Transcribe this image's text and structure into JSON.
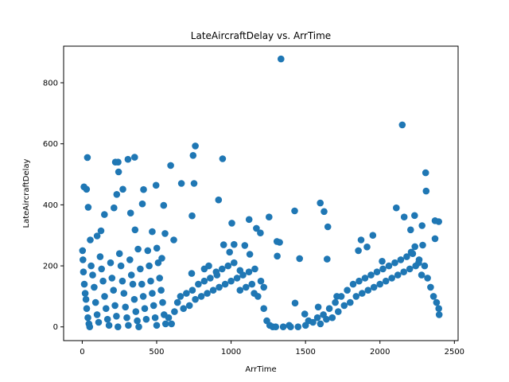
{
  "chart_data": {
    "type": "scatter",
    "title": "LateAircraftDelay vs. ArrTime",
    "xlabel": "ArrTime",
    "ylabel": "LateAircraftDelay",
    "xlim": [
      -125,
      2525
    ],
    "ylim": [
      -45,
      920
    ],
    "x_ticks": [
      0,
      500,
      1000,
      1500,
      2000,
      2500
    ],
    "y_ticks": [
      0,
      200,
      400,
      600,
      800
    ],
    "grid": false,
    "marker_color": "#1f77b4",
    "series": [
      {
        "points": [
          [
            1335,
            878
          ],
          [
            2150,
            662
          ],
          [
            760,
            593
          ],
          [
            745,
            562
          ],
          [
            35,
            555
          ],
          [
            352,
            556
          ],
          [
            943,
            551
          ],
          [
            307,
            549
          ],
          [
            223,
            540
          ],
          [
            241,
            540
          ],
          [
            594,
            529
          ],
          [
            244,
            508
          ],
          [
            2307,
            505
          ],
          [
            666,
            470
          ],
          [
            751,
            470
          ],
          [
            496,
            464
          ],
          [
            12,
            459
          ],
          [
            29,
            451
          ],
          [
            273,
            451
          ],
          [
            412,
            450
          ],
          [
            2310,
            445
          ],
          [
            232,
            434
          ],
          [
            916,
            416
          ],
          [
            1599,
            406
          ],
          [
            404,
            403
          ],
          [
            547,
            398
          ],
          [
            40,
            392
          ],
          [
            213,
            390
          ],
          [
            2110,
            390
          ],
          [
            1427,
            380
          ],
          [
            1625,
            378
          ],
          [
            325,
            373
          ],
          [
            738,
            364
          ],
          [
            1255,
            360
          ],
          [
            2163,
            360
          ],
          [
            2233,
            365
          ],
          [
            149,
            368
          ],
          [
            1121,
            352
          ],
          [
            2370,
            348
          ],
          [
            2395,
            345
          ],
          [
            1005,
            340
          ],
          [
            2283,
            332
          ],
          [
            1650,
            328
          ],
          [
            1170,
            323
          ],
          [
            2206,
            318
          ],
          [
            355,
            318
          ],
          [
            126,
            315
          ],
          [
            470,
            312
          ],
          [
            1197,
            308
          ],
          [
            556,
            306
          ],
          [
            1952,
            300
          ],
          [
            100,
            298
          ],
          [
            2370,
            289
          ],
          [
            1873,
            285
          ],
          [
            615,
            285
          ],
          [
            54,
            285
          ],
          [
            1308,
            280
          ],
          [
            1326,
            277
          ],
          [
            1020,
            270
          ],
          [
            950,
            269
          ],
          [
            2287,
            268
          ],
          [
            1092,
            267
          ],
          [
            2235,
            263
          ],
          [
            1913,
            262
          ],
          [
            501,
            258
          ],
          [
            375,
            255
          ],
          [
            1855,
            250
          ],
          [
            2210,
            245
          ],
          [
            990,
            245
          ],
          [
            1126,
            238
          ],
          [
            1310,
            232
          ],
          [
            1460,
            224
          ],
          [
            1645,
            222
          ],
          [
            2263,
            220
          ],
          [
            2015,
            215
          ],
          [
            535,
            225
          ],
          [
            735,
            175
          ],
          [
            1220,
            130
          ],
          [
            1155,
            110
          ],
          [
            1495,
            42
          ],
          [
            1585,
            65
          ],
          [
            1710,
            100
          ],
          [
            850,
            200
          ],
          [
            820,
            190
          ],
          [
            1060,
            185
          ],
          [
            905,
            170
          ],
          [
            1390,
            5
          ],
          [
            1430,
            78
          ],
          [
            2,
            250
          ],
          [
            5,
            220
          ],
          [
            8,
            180
          ],
          [
            14,
            140
          ],
          [
            20,
            110
          ],
          [
            25,
            90
          ],
          [
            30,
            60
          ],
          [
            38,
            30
          ],
          [
            45,
            10
          ],
          [
            50,
            0
          ],
          [
            60,
            200
          ],
          [
            70,
            170
          ],
          [
            80,
            130
          ],
          [
            90,
            80
          ],
          [
            100,
            40
          ],
          [
            110,
            15
          ],
          [
            120,
            230
          ],
          [
            130,
            190
          ],
          [
            140,
            150
          ],
          [
            150,
            100
          ],
          [
            160,
            60
          ],
          [
            170,
            25
          ],
          [
            180,
            5
          ],
          [
            190,
            210
          ],
          [
            200,
            160
          ],
          [
            210,
            120
          ],
          [
            220,
            70
          ],
          [
            230,
            35
          ],
          [
            240,
            0
          ],
          [
            250,
            240
          ],
          [
            260,
            200
          ],
          [
            270,
            150
          ],
          [
            280,
            110
          ],
          [
            290,
            65
          ],
          [
            300,
            30
          ],
          [
            310,
            5
          ],
          [
            320,
            220
          ],
          [
            330,
            170
          ],
          [
            340,
            140
          ],
          [
            350,
            90
          ],
          [
            360,
            50
          ],
          [
            370,
            20
          ],
          [
            380,
            0
          ],
          [
            390,
            190
          ],
          [
            400,
            140
          ],
          [
            410,
            100
          ],
          [
            420,
            60
          ],
          [
            430,
            25
          ],
          [
            440,
            250
          ],
          [
            450,
            200
          ],
          [
            460,
            150
          ],
          [
            470,
            110
          ],
          [
            480,
            70
          ],
          [
            490,
            30
          ],
          [
            500,
            5
          ],
          [
            510,
            210
          ],
          [
            520,
            160
          ],
          [
            530,
            120
          ],
          [
            540,
            80
          ],
          [
            550,
            40
          ],
          [
            560,
            10
          ],
          [
            580,
            30
          ],
          [
            600,
            10
          ],
          [
            620,
            50
          ],
          [
            640,
            80
          ],
          [
            660,
            100
          ],
          [
            680,
            60
          ],
          [
            700,
            110
          ],
          [
            720,
            70
          ],
          [
            740,
            120
          ],
          [
            760,
            90
          ],
          [
            780,
            140
          ],
          [
            800,
            100
          ],
          [
            820,
            150
          ],
          [
            840,
            110
          ],
          [
            860,
            160
          ],
          [
            880,
            120
          ],
          [
            900,
            180
          ],
          [
            920,
            130
          ],
          [
            940,
            190
          ],
          [
            960,
            140
          ],
          [
            980,
            200
          ],
          [
            1000,
            150
          ],
          [
            1020,
            210
          ],
          [
            1040,
            160
          ],
          [
            1060,
            120
          ],
          [
            1080,
            170
          ],
          [
            1100,
            130
          ],
          [
            1120,
            180
          ],
          [
            1140,
            140
          ],
          [
            1160,
            190
          ],
          [
            1180,
            100
          ],
          [
            1200,
            150
          ],
          [
            1220,
            60
          ],
          [
            1240,
            20
          ],
          [
            1260,
            5
          ],
          [
            1280,
            0
          ],
          [
            1300,
            0
          ],
          [
            1350,
            0
          ],
          [
            1400,
            0
          ],
          [
            1450,
            0
          ],
          [
            1500,
            5
          ],
          [
            1520,
            20
          ],
          [
            1550,
            15
          ],
          [
            1580,
            30
          ],
          [
            1600,
            10
          ],
          [
            1620,
            40
          ],
          [
            1640,
            25
          ],
          [
            1660,
            60
          ],
          [
            1680,
            30
          ],
          [
            1700,
            80
          ],
          [
            1720,
            50
          ],
          [
            1740,
            100
          ],
          [
            1760,
            70
          ],
          [
            1780,
            120
          ],
          [
            1800,
            80
          ],
          [
            1820,
            140
          ],
          [
            1840,
            100
          ],
          [
            1860,
            150
          ],
          [
            1880,
            110
          ],
          [
            1900,
            160
          ],
          [
            1920,
            120
          ],
          [
            1940,
            170
          ],
          [
            1960,
            130
          ],
          [
            1980,
            180
          ],
          [
            2000,
            140
          ],
          [
            2020,
            190
          ],
          [
            2040,
            150
          ],
          [
            2060,
            200
          ],
          [
            2080,
            160
          ],
          [
            2100,
            210
          ],
          [
            2120,
            170
          ],
          [
            2140,
            220
          ],
          [
            2160,
            180
          ],
          [
            2180,
            230
          ],
          [
            2200,
            190
          ],
          [
            2220,
            240
          ],
          [
            2240,
            200
          ],
          [
            2260,
            210
          ],
          [
            2280,
            170
          ],
          [
            2300,
            200
          ],
          [
            2320,
            160
          ],
          [
            2340,
            130
          ],
          [
            2360,
            100
          ],
          [
            2380,
            80
          ],
          [
            2395,
            60
          ],
          [
            2398,
            40
          ]
        ]
      }
    ]
  }
}
